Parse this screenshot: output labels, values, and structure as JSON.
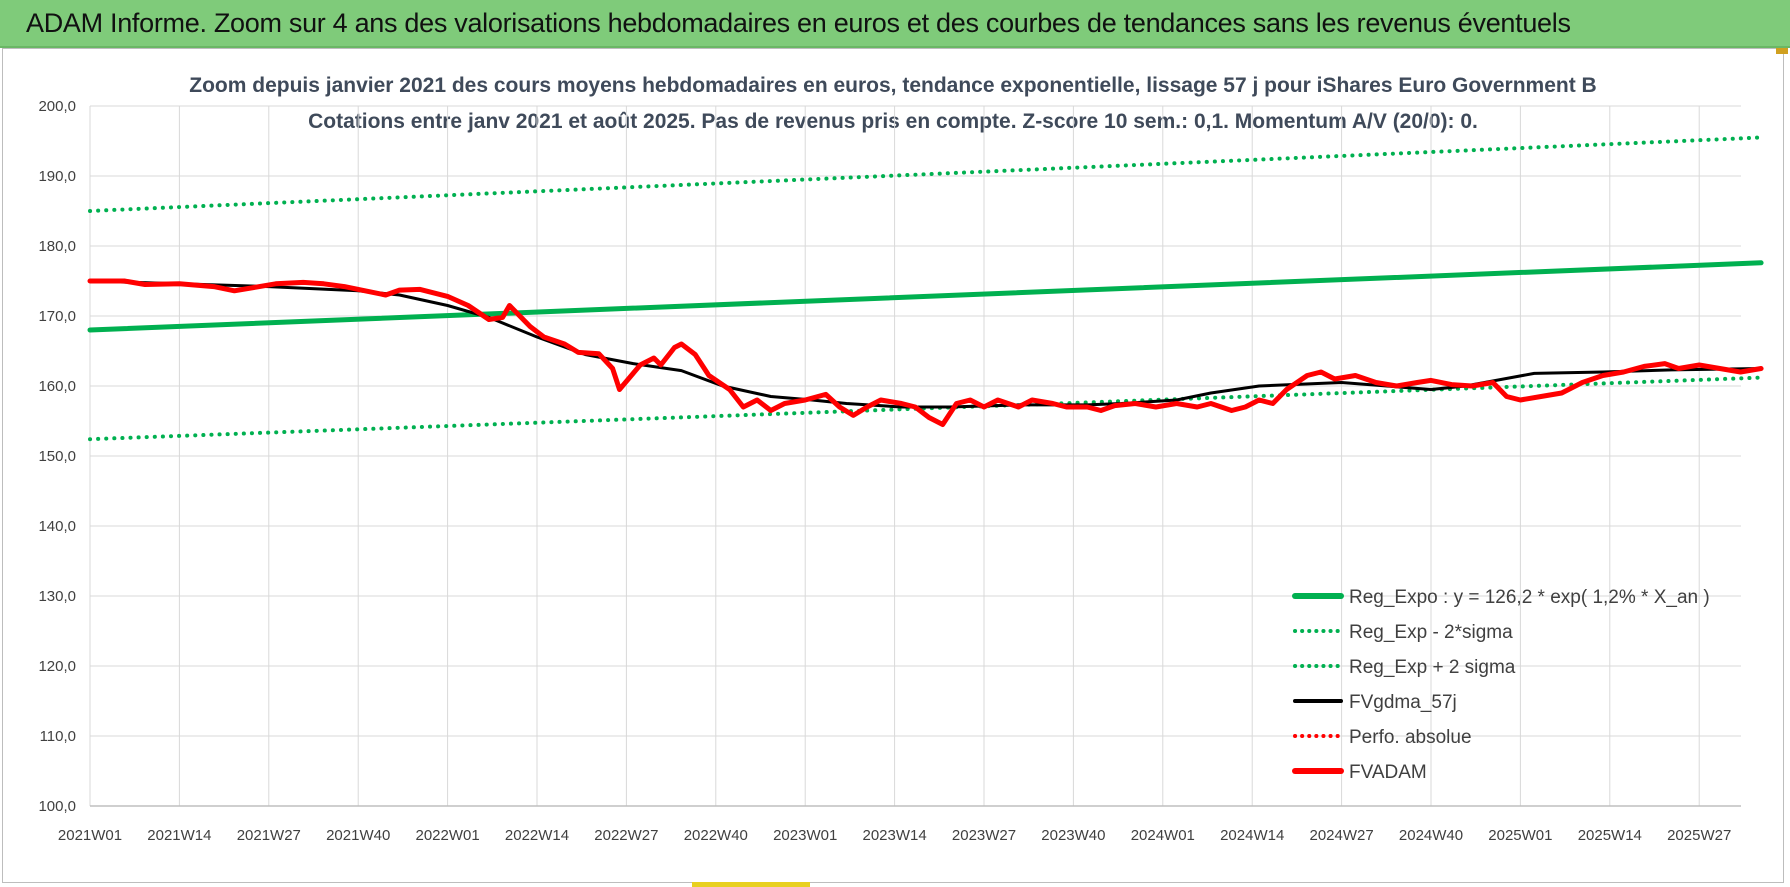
{
  "banner": {
    "title": "ADAM Informe. Zoom sur 4 ans des valorisations hebdomadaires en euros et des courbes de tendances sans les revenus éventuels"
  },
  "chart_data": {
    "type": "line",
    "title": "Zoom depuis janvier 2021 des cours moyens hebdomadaires en euros, tendance exponentielle, lissage 57 j pour iShares Euro Government B",
    "subtitle": "Cotations entre janv 2021 et août 2025. Pas de revenus pris en compte. Z-score 10 sem.: 0,1. Momentum A/V (20/0): 0.",
    "x_labels": [
      "2021W01",
      "2021W14",
      "2021W27",
      "2021W40",
      "2022W01",
      "2022W14",
      "2022W27",
      "2022W40",
      "2023W01",
      "2023W14",
      "2023W27",
      "2023W40",
      "2024W01",
      "2024W14",
      "2024W27",
      "2024W40",
      "2025W01",
      "2025W14",
      "2025W27"
    ],
    "x_range": [
      "2021W01",
      "2025W35"
    ],
    "yticks": [
      "100,0",
      "110,0",
      "120,0",
      "130,0",
      "140,0",
      "150,0",
      "160,0",
      "170,0",
      "180,0",
      "190,0",
      "200,0"
    ],
    "ylim": [
      100,
      200
    ],
    "grid": true,
    "legend_position": "bottom-right",
    "series": [
      {
        "name": "Reg_Expo : y = 126,2 * exp( 1,2% *  X_an )",
        "color": "#00b050",
        "style": "solid",
        "points": [
          [
            0,
            168.0
          ],
          [
            243,
            177.6
          ]
        ]
      },
      {
        "name": "Reg_Exp - 2*sigma",
        "color": "#00b050",
        "style": "dotted",
        "points": [
          [
            0,
            152.4
          ],
          [
            243,
            161.2
          ]
        ]
      },
      {
        "name": "Reg_Exp + 2 sigma",
        "color": "#00b050",
        "style": "dotted",
        "points": [
          [
            0,
            185.0
          ],
          [
            243,
            195.5
          ]
        ]
      },
      {
        "name": "FVgdma_57j",
        "color": "#000000",
        "style": "solid",
        "points": [
          [
            0,
            175.0
          ],
          [
            13,
            174.6
          ],
          [
            26,
            174.2
          ],
          [
            39,
            173.6
          ],
          [
            45,
            173.0
          ],
          [
            52,
            171.5
          ],
          [
            58,
            169.8
          ],
          [
            65,
            167.0
          ],
          [
            72,
            164.5
          ],
          [
            79,
            163.2
          ],
          [
            86,
            162.2
          ],
          [
            92,
            160.0
          ],
          [
            99,
            158.5
          ],
          [
            105,
            158.0
          ],
          [
            110,
            157.5
          ],
          [
            118,
            157.0
          ],
          [
            125,
            157.0
          ],
          [
            135,
            157.3
          ],
          [
            145,
            157.3
          ],
          [
            150,
            157.5
          ],
          [
            158,
            158.0
          ],
          [
            163,
            159.0
          ],
          [
            170,
            160.0
          ],
          [
            182,
            160.5
          ],
          [
            195,
            159.5
          ],
          [
            200,
            160.0
          ],
          [
            210,
            161.8
          ],
          [
            220,
            162.0
          ],
          [
            230,
            162.3
          ],
          [
            243,
            162.5
          ]
        ]
      },
      {
        "name": "Perfo. absolue",
        "color": "#ff0000",
        "style": "dotted",
        "points": []
      },
      {
        "name": "FVADAM",
        "color": "#ff0000",
        "style": "solid",
        "points": [
          [
            0,
            175.0
          ],
          [
            5,
            175.0
          ],
          [
            8,
            174.5
          ],
          [
            13,
            174.6
          ],
          [
            18,
            174.2
          ],
          [
            21,
            173.6
          ],
          [
            24,
            174.1
          ],
          [
            27,
            174.6
          ],
          [
            31,
            174.8
          ],
          [
            34,
            174.6
          ],
          [
            37,
            174.2
          ],
          [
            40,
            173.6
          ],
          [
            43,
            173.0
          ],
          [
            45,
            173.7
          ],
          [
            48,
            173.8
          ],
          [
            52,
            172.8
          ],
          [
            55,
            171.5
          ],
          [
            58,
            169.5
          ],
          [
            60,
            169.8
          ],
          [
            61,
            171.5
          ],
          [
            64,
            168.5
          ],
          [
            66,
            167.0
          ],
          [
            69,
            166.0
          ],
          [
            71,
            164.8
          ],
          [
            74,
            164.6
          ],
          [
            76,
            162.5
          ],
          [
            77,
            159.5
          ],
          [
            80,
            163.0
          ],
          [
            82,
            164.0
          ],
          [
            83,
            163.0
          ],
          [
            85,
            165.5
          ],
          [
            86,
            166.0
          ],
          [
            88,
            164.5
          ],
          [
            90,
            161.5
          ],
          [
            93,
            159.5
          ],
          [
            95,
            157.0
          ],
          [
            97,
            158.0
          ],
          [
            99,
            156.5
          ],
          [
            101,
            157.5
          ],
          [
            104,
            158.0
          ],
          [
            107,
            158.8
          ],
          [
            109,
            157.0
          ],
          [
            111,
            155.8
          ],
          [
            113,
            157.0
          ],
          [
            115,
            158.0
          ],
          [
            118,
            157.5
          ],
          [
            120,
            157.0
          ],
          [
            122,
            155.5
          ],
          [
            124,
            154.5
          ],
          [
            126,
            157.5
          ],
          [
            128,
            158.0
          ],
          [
            130,
            157.0
          ],
          [
            132,
            158.0
          ],
          [
            135,
            157.0
          ],
          [
            137,
            158.0
          ],
          [
            140,
            157.5
          ],
          [
            142,
            157.0
          ],
          [
            145,
            157.0
          ],
          [
            147,
            156.5
          ],
          [
            149,
            157.2
          ],
          [
            152,
            157.5
          ],
          [
            155,
            157.0
          ],
          [
            158,
            157.5
          ],
          [
            161,
            157.0
          ],
          [
            163,
            157.5
          ],
          [
            166,
            156.5
          ],
          [
            168,
            157.0
          ],
          [
            170,
            158.0
          ],
          [
            172,
            157.5
          ],
          [
            174,
            159.5
          ],
          [
            177,
            161.5
          ],
          [
            179,
            162.0
          ],
          [
            181,
            161.0
          ],
          [
            184,
            161.5
          ],
          [
            187,
            160.5
          ],
          [
            190,
            160.0
          ],
          [
            193,
            160.5
          ],
          [
            195,
            160.8
          ],
          [
            198,
            160.2
          ],
          [
            201,
            160.0
          ],
          [
            204,
            160.5
          ],
          [
            206,
            158.5
          ],
          [
            208,
            158.0
          ],
          [
            211,
            158.5
          ],
          [
            214,
            159.0
          ],
          [
            217,
            160.5
          ],
          [
            220,
            161.5
          ],
          [
            223,
            162.0
          ],
          [
            226,
            162.8
          ],
          [
            229,
            163.2
          ],
          [
            231,
            162.5
          ],
          [
            234,
            163.0
          ],
          [
            237,
            162.5
          ],
          [
            240,
            162.0
          ],
          [
            243,
            162.5
          ]
        ]
      }
    ]
  }
}
